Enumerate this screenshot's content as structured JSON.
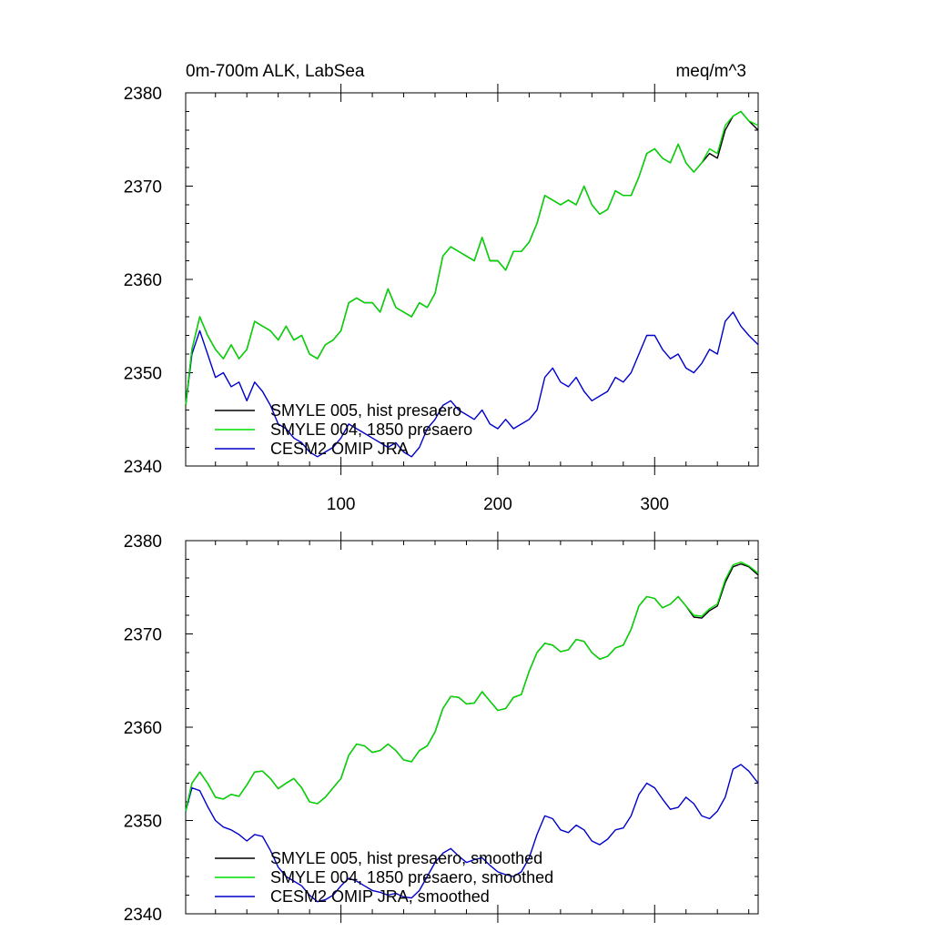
{
  "chart_data": [
    {
      "type": "line",
      "title_left": "0m-700m ALK, LabSea",
      "title_right": "meq/m^3",
      "xlabel": "",
      "ylabel": "",
      "xlim": [
        1,
        366
      ],
      "ylim": [
        2340,
        2380
      ],
      "xticks": [
        100,
        200,
        300
      ],
      "xtick_labels": [
        "100",
        "200",
        "300"
      ],
      "yticks": [
        2340,
        2350,
        2360,
        2370,
        2380
      ],
      "ytick_labels": [
        "2340",
        "2350",
        "2360",
        "2370",
        "2380"
      ],
      "legend_position": "lower-left",
      "series": [
        {
          "name": "SMYLE 005, hist presaero",
          "color": "#000000",
          "x": [
            1,
            5,
            10,
            15,
            20,
            25,
            30,
            35,
            40,
            45,
            50,
            55,
            60,
            65,
            70,
            75,
            80,
            85,
            90,
            95,
            100,
            105,
            110,
            115,
            120,
            125,
            130,
            135,
            140,
            145,
            150,
            155,
            160,
            165,
            170,
            175,
            180,
            185,
            190,
            195,
            200,
            205,
            210,
            215,
            220,
            225,
            230,
            235,
            240,
            245,
            250,
            255,
            260,
            265,
            270,
            275,
            280,
            285,
            290,
            295,
            300,
            305,
            310,
            315,
            320,
            325,
            330,
            335,
            340,
            345,
            350,
            355,
            360,
            366
          ],
          "values": [
            2346.5,
            2352.5,
            2356.0,
            2354.0,
            2352.5,
            2351.5,
            2353.0,
            2351.5,
            2352.5,
            2355.5,
            2355.0,
            2354.5,
            2353.5,
            2355.0,
            2353.5,
            2354.0,
            2352.0,
            2351.5,
            2353.0,
            2353.5,
            2354.5,
            2357.5,
            2358.0,
            2357.5,
            2357.5,
            2356.5,
            2359.0,
            2357.0,
            2356.5,
            2356.0,
            2357.5,
            2357.0,
            2358.5,
            2362.5,
            2363.5,
            2363.0,
            2362.5,
            2362.0,
            2364.5,
            2362.0,
            2362.0,
            2361.0,
            2363.0,
            2363.0,
            2364.0,
            2366.0,
            2369.0,
            2368.5,
            2368.0,
            2368.5,
            2368.0,
            2370.0,
            2368.0,
            2367.0,
            2367.5,
            2369.5,
            2369.0,
            2369.0,
            2371.0,
            2373.5,
            2374.0,
            2373.0,
            2372.5,
            2374.5,
            2372.5,
            2371.5,
            2372.5,
            2373.5,
            2373.0,
            2376.0,
            2377.5,
            2378.0,
            2377.0,
            2376.0
          ]
        },
        {
          "name": "SMYLE 004, 1850 presaero",
          "color": "#00dd00",
          "x": [
            1,
            5,
            10,
            15,
            20,
            25,
            30,
            35,
            40,
            45,
            50,
            55,
            60,
            65,
            70,
            75,
            80,
            85,
            90,
            95,
            100,
            105,
            110,
            115,
            120,
            125,
            130,
            135,
            140,
            145,
            150,
            155,
            160,
            165,
            170,
            175,
            180,
            185,
            190,
            195,
            200,
            205,
            210,
            215,
            220,
            225,
            230,
            235,
            240,
            245,
            250,
            255,
            260,
            265,
            270,
            275,
            280,
            285,
            290,
            295,
            300,
            305,
            310,
            315,
            320,
            325,
            330,
            335,
            340,
            345,
            350,
            355,
            360,
            366
          ],
          "values": [
            2346.5,
            2352.5,
            2356.0,
            2354.0,
            2352.5,
            2351.5,
            2353.0,
            2351.5,
            2352.5,
            2355.5,
            2355.0,
            2354.5,
            2353.5,
            2355.0,
            2353.5,
            2354.0,
            2352.0,
            2351.5,
            2353.0,
            2353.5,
            2354.5,
            2357.5,
            2358.0,
            2357.5,
            2357.5,
            2356.5,
            2359.0,
            2357.0,
            2356.5,
            2356.0,
            2357.5,
            2357.0,
            2358.5,
            2362.5,
            2363.5,
            2363.0,
            2362.5,
            2362.0,
            2364.5,
            2362.0,
            2362.0,
            2361.0,
            2363.0,
            2363.0,
            2364.0,
            2366.0,
            2369.0,
            2368.5,
            2368.0,
            2368.5,
            2368.0,
            2370.0,
            2368.0,
            2367.0,
            2367.5,
            2369.5,
            2369.0,
            2369.0,
            2371.0,
            2373.5,
            2374.0,
            2373.0,
            2372.5,
            2374.5,
            2372.5,
            2371.5,
            2372.5,
            2374.0,
            2373.5,
            2376.5,
            2377.5,
            2378.0,
            2377.0,
            2376.5
          ]
        },
        {
          "name": "CESM2 OMIP JRA",
          "color": "#0000cc",
          "x": [
            1,
            5,
            10,
            15,
            20,
            25,
            30,
            35,
            40,
            45,
            50,
            55,
            60,
            65,
            70,
            75,
            80,
            85,
            90,
            95,
            100,
            105,
            110,
            115,
            120,
            125,
            130,
            135,
            140,
            145,
            150,
            155,
            160,
            165,
            170,
            175,
            180,
            185,
            190,
            195,
            200,
            205,
            210,
            215,
            220,
            225,
            230,
            235,
            240,
            245,
            250,
            255,
            260,
            265,
            270,
            275,
            280,
            285,
            290,
            295,
            300,
            305,
            310,
            315,
            320,
            325,
            330,
            335,
            340,
            345,
            350,
            355,
            360,
            366
          ],
          "values": [
            2346.5,
            2352.0,
            2354.5,
            2352.0,
            2349.5,
            2350.0,
            2348.5,
            2349.0,
            2347.0,
            2349.0,
            2348.0,
            2346.5,
            2344.5,
            2344.0,
            2343.0,
            2342.5,
            2341.5,
            2341.0,
            2341.5,
            2342.0,
            2343.0,
            2344.5,
            2344.0,
            2343.5,
            2343.0,
            2342.5,
            2342.0,
            2342.5,
            2341.5,
            2341.0,
            2342.0,
            2344.0,
            2345.0,
            2346.5,
            2347.0,
            2346.0,
            2345.5,
            2345.0,
            2346.0,
            2344.5,
            2344.0,
            2345.0,
            2344.0,
            2344.5,
            2345.0,
            2346.0,
            2349.5,
            2350.5,
            2349.0,
            2348.5,
            2349.5,
            2348.0,
            2347.0,
            2347.5,
            2348.0,
            2349.5,
            2349.0,
            2350.0,
            2352.0,
            2354.0,
            2354.0,
            2352.5,
            2351.5,
            2352.0,
            2350.5,
            2350.0,
            2351.0,
            2352.5,
            2352.0,
            2355.5,
            2356.5,
            2355.0,
            2354.0,
            2353.0
          ]
        }
      ]
    },
    {
      "type": "line",
      "title_left": "",
      "title_right": "",
      "xlabel": "",
      "ylabel": "",
      "xlim": [
        1,
        366
      ],
      "ylim": [
        2340,
        2380
      ],
      "xticks": [
        100,
        200,
        300
      ],
      "xtick_labels": [
        "",
        "",
        ""
      ],
      "yticks": [
        2340,
        2350,
        2360,
        2370,
        2380
      ],
      "ytick_labels": [
        "2340",
        "2350",
        "2360",
        "2370",
        "2380"
      ],
      "legend_position": "lower-left",
      "series": [
        {
          "name": "SMYLE 005, hist presaero, smoothed",
          "color": "#000000",
          "x": [
            1,
            5,
            10,
            15,
            20,
            25,
            30,
            35,
            40,
            45,
            50,
            55,
            60,
            65,
            70,
            75,
            80,
            85,
            90,
            95,
            100,
            105,
            110,
            115,
            120,
            125,
            130,
            135,
            140,
            145,
            150,
            155,
            160,
            165,
            170,
            175,
            180,
            185,
            190,
            195,
            200,
            205,
            210,
            215,
            220,
            225,
            230,
            235,
            240,
            245,
            250,
            255,
            260,
            265,
            270,
            275,
            280,
            285,
            290,
            295,
            300,
            305,
            310,
            315,
            320,
            325,
            330,
            335,
            340,
            345,
            350,
            355,
            360,
            366
          ],
          "values": [
            2351.0,
            2354.0,
            2355.2,
            2354.0,
            2352.5,
            2352.3,
            2352.8,
            2352.6,
            2353.8,
            2355.2,
            2355.3,
            2354.5,
            2353.4,
            2354.0,
            2354.5,
            2353.5,
            2352.0,
            2351.8,
            2352.5,
            2353.5,
            2354.5,
            2357.0,
            2358.2,
            2358.0,
            2357.3,
            2357.5,
            2358.2,
            2357.5,
            2356.5,
            2356.3,
            2357.5,
            2358.0,
            2359.5,
            2362.0,
            2363.3,
            2363.2,
            2362.5,
            2362.6,
            2363.8,
            2362.8,
            2361.8,
            2362.0,
            2363.2,
            2363.5,
            2366.0,
            2368.0,
            2369.0,
            2368.8,
            2368.1,
            2368.3,
            2369.4,
            2369.2,
            2368.0,
            2367.3,
            2367.6,
            2368.5,
            2368.8,
            2370.5,
            2373.0,
            2374.0,
            2373.8,
            2372.8,
            2373.2,
            2374.0,
            2373.0,
            2371.8,
            2371.7,
            2372.5,
            2373.0,
            2375.5,
            2377.2,
            2377.5,
            2377.2,
            2376.3
          ]
        },
        {
          "name": "SMYLE 004, 1850 presaero, smoothed",
          "color": "#00dd00",
          "x": [
            1,
            5,
            10,
            15,
            20,
            25,
            30,
            35,
            40,
            45,
            50,
            55,
            60,
            65,
            70,
            75,
            80,
            85,
            90,
            95,
            100,
            105,
            110,
            115,
            120,
            125,
            130,
            135,
            140,
            145,
            150,
            155,
            160,
            165,
            170,
            175,
            180,
            185,
            190,
            195,
            200,
            205,
            210,
            215,
            220,
            225,
            230,
            235,
            240,
            245,
            250,
            255,
            260,
            265,
            270,
            275,
            280,
            285,
            290,
            295,
            300,
            305,
            310,
            315,
            320,
            325,
            330,
            335,
            340,
            345,
            350,
            355,
            360,
            366
          ],
          "values": [
            2351.0,
            2354.0,
            2355.2,
            2354.0,
            2352.5,
            2352.3,
            2352.8,
            2352.6,
            2353.8,
            2355.2,
            2355.3,
            2354.5,
            2353.4,
            2354.0,
            2354.5,
            2353.5,
            2352.0,
            2351.8,
            2352.5,
            2353.5,
            2354.5,
            2357.0,
            2358.2,
            2358.0,
            2357.3,
            2357.5,
            2358.2,
            2357.5,
            2356.5,
            2356.3,
            2357.5,
            2358.0,
            2359.5,
            2362.0,
            2363.3,
            2363.2,
            2362.5,
            2362.6,
            2363.8,
            2362.8,
            2361.8,
            2362.0,
            2363.2,
            2363.5,
            2366.0,
            2368.0,
            2369.0,
            2368.8,
            2368.1,
            2368.3,
            2369.4,
            2369.2,
            2368.0,
            2367.3,
            2367.6,
            2368.5,
            2368.8,
            2370.5,
            2373.0,
            2374.0,
            2373.8,
            2372.8,
            2373.2,
            2374.0,
            2373.0,
            2372.0,
            2371.9,
            2372.7,
            2373.2,
            2375.8,
            2377.4,
            2377.7,
            2377.3,
            2376.5
          ]
        },
        {
          "name": "CESM2 OMIP JRA, smoothed",
          "color": "#0000cc",
          "x": [
            1,
            5,
            10,
            15,
            20,
            25,
            30,
            35,
            40,
            45,
            50,
            55,
            60,
            65,
            70,
            75,
            80,
            85,
            90,
            95,
            100,
            105,
            110,
            115,
            120,
            125,
            130,
            135,
            140,
            145,
            150,
            155,
            160,
            165,
            170,
            175,
            180,
            185,
            190,
            195,
            200,
            205,
            210,
            215,
            220,
            225,
            230,
            235,
            240,
            245,
            250,
            255,
            260,
            265,
            270,
            275,
            280,
            285,
            290,
            295,
            300,
            305,
            310,
            315,
            320,
            325,
            330,
            335,
            340,
            345,
            350,
            355,
            360,
            366
          ],
          "values": [
            2351.0,
            2353.5,
            2353.2,
            2351.5,
            2350.0,
            2349.3,
            2349.0,
            2348.5,
            2347.8,
            2348.5,
            2348.3,
            2346.8,
            2345.0,
            2344.0,
            2343.5,
            2343.0,
            2342.0,
            2341.3,
            2341.5,
            2342.0,
            2343.0,
            2343.8,
            2343.5,
            2343.0,
            2342.5,
            2342.3,
            2342.0,
            2342.2,
            2341.8,
            2341.7,
            2342.5,
            2344.0,
            2345.5,
            2346.5,
            2347.0,
            2346.2,
            2345.5,
            2345.8,
            2346.0,
            2345.2,
            2344.5,
            2344.2,
            2344.0,
            2344.5,
            2346.0,
            2348.5,
            2350.5,
            2350.2,
            2349.0,
            2348.7,
            2349.5,
            2349.0,
            2347.8,
            2347.4,
            2348.0,
            2349.0,
            2349.2,
            2350.5,
            2352.8,
            2354.0,
            2353.5,
            2352.3,
            2351.2,
            2351.4,
            2352.5,
            2351.8,
            2350.5,
            2350.2,
            2351.0,
            2352.5,
            2355.5,
            2356.0,
            2355.3,
            2354.0
          ]
        }
      ]
    }
  ]
}
